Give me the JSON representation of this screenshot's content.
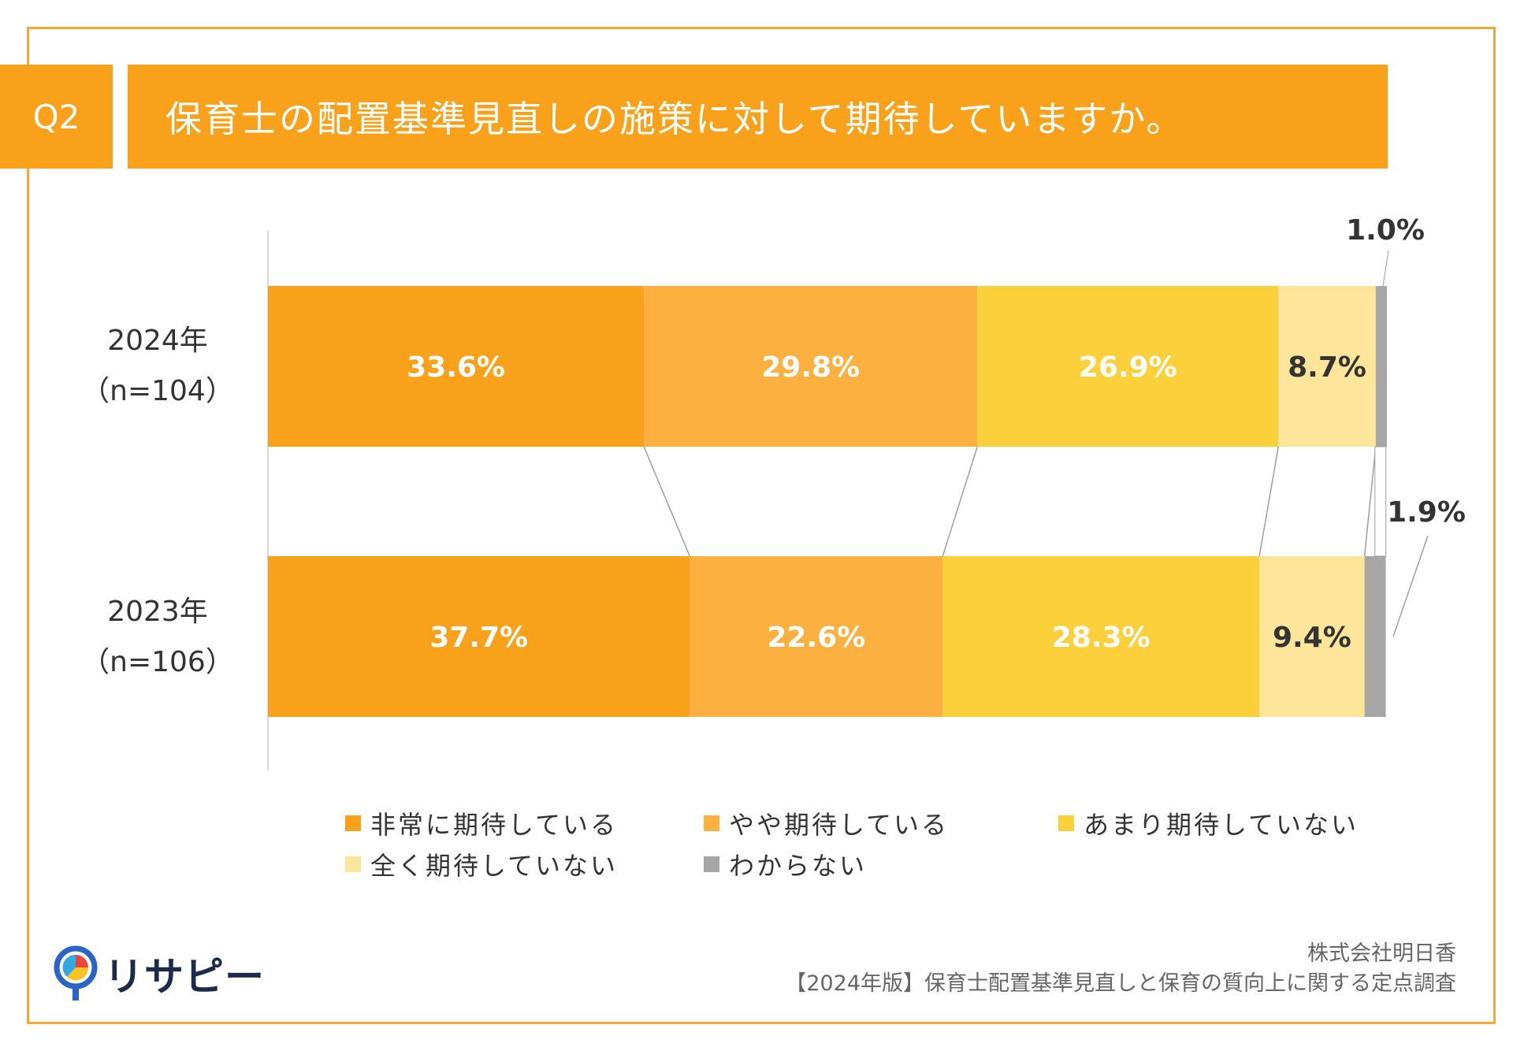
{
  "header": {
    "question_label": "Q2",
    "title": "保育士の配置基準見直しの施策に対して期待していますか。"
  },
  "chart_data": {
    "type": "bar",
    "orientation": "horizontal",
    "stacked": true,
    "categories": [
      "2024年\n（n=104）",
      "2023年\n（n=106）"
    ],
    "series": [
      {
        "name": "非常に期待している",
        "values": [
          33.6,
          37.7
        ],
        "labels": [
          "33.6%",
          "37.7%"
        ],
        "color": "#f9a11b",
        "label_color": "#ffffff"
      },
      {
        "name": "やや期待している",
        "values": [
          29.8,
          22.6
        ],
        "labels": [
          "29.8%",
          "22.6%"
        ],
        "color": "#fbb040",
        "label_color": "#ffffff"
      },
      {
        "name": "あまり期待していない",
        "values": [
          26.9,
          28.3
        ],
        "labels": [
          "26.9%",
          "28.3%"
        ],
        "color": "#fcd03a",
        "label_color": "#ffffff"
      },
      {
        "name": "全く期待していない",
        "values": [
          8.7,
          9.4
        ],
        "labels": [
          "8.7%",
          "9.4%"
        ],
        "color": "#fde59a",
        "label_color": "#333333"
      },
      {
        "name": "わからない",
        "values": [
          1.0,
          1.9
        ],
        "labels": [
          "1.0%",
          "1.9%"
        ],
        "color": "#a6a6a6",
        "label_color": "#333333"
      }
    ],
    "xlim": [
      0,
      100
    ],
    "legend_position": "bottom",
    "grid": false
  },
  "legend": {
    "items": [
      {
        "label": "非常に期待している",
        "color": "#f9a11b"
      },
      {
        "label": "やや期待している",
        "color": "#fbb040"
      },
      {
        "label": "あまり期待していない",
        "color": "#fcd03a"
      },
      {
        "label": "全く期待していない",
        "color": "#fde59a"
      },
      {
        "label": "わからない",
        "color": "#a6a6a6"
      }
    ]
  },
  "footer": {
    "logo_text": "リサピー",
    "company": "株式会社明日香",
    "survey_title": "【2024年版】保育士配置基準見直しと保育の質向上に関する定点調査"
  }
}
